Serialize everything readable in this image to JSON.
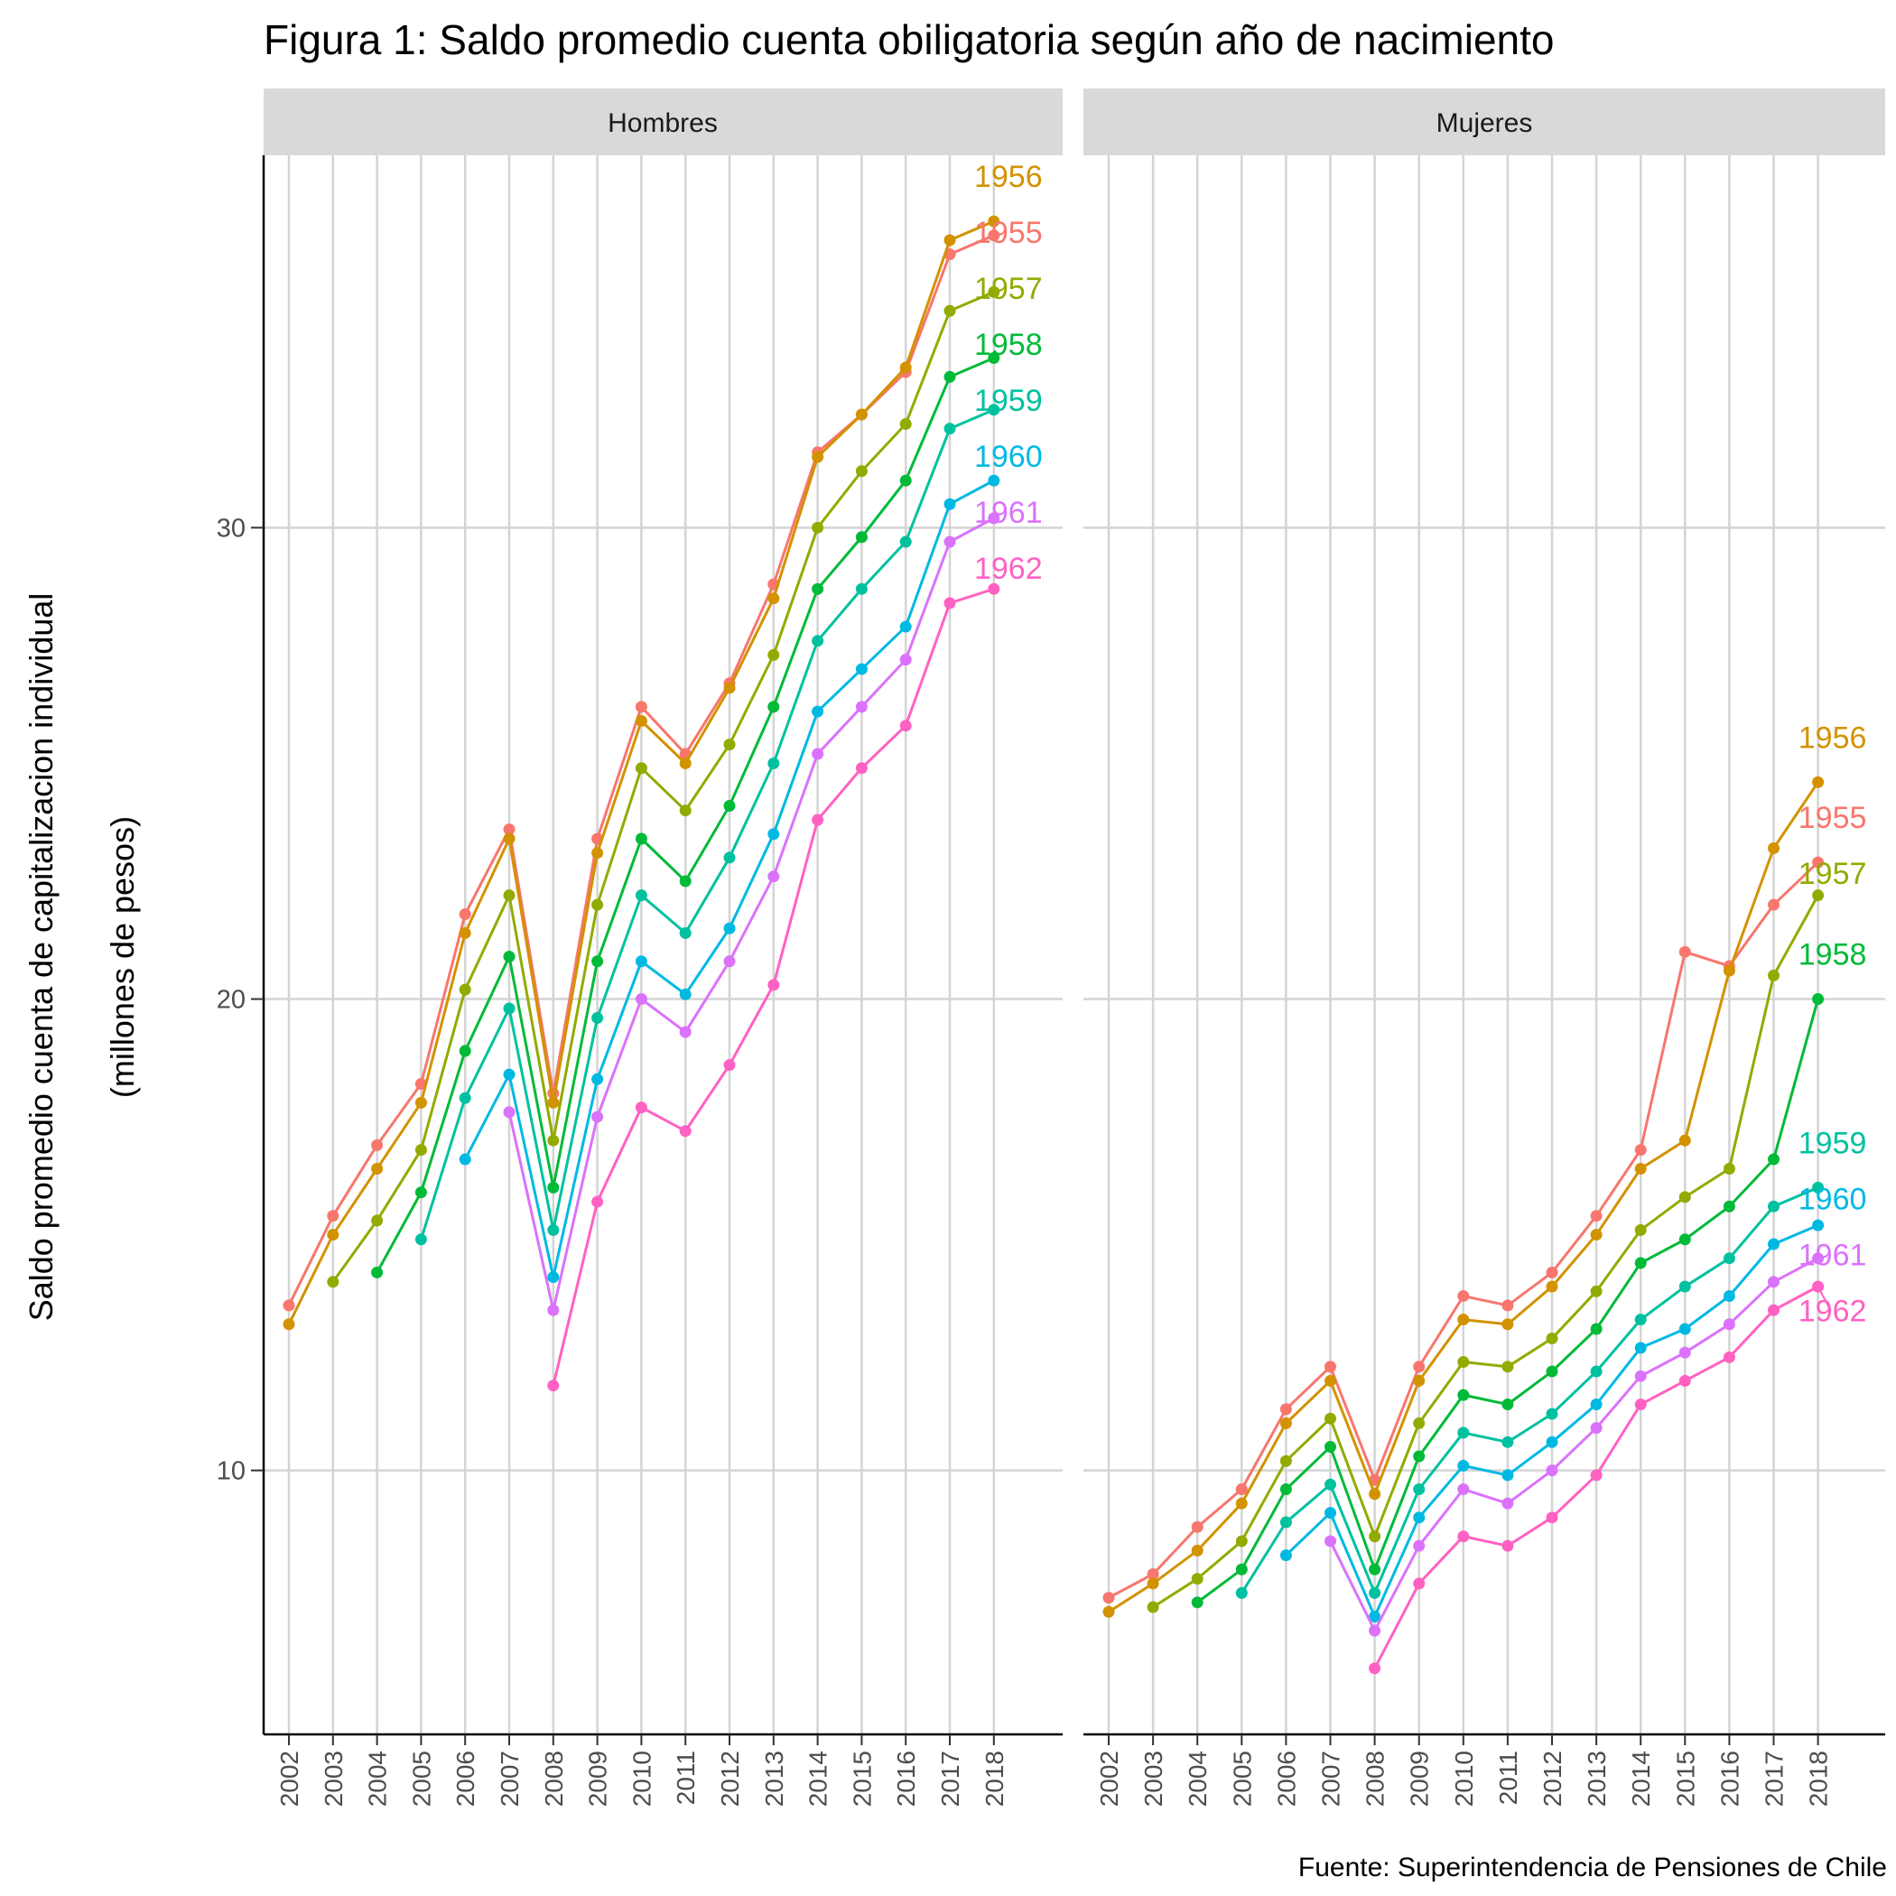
{
  "chart_data": {
    "type": "line",
    "title": "Figura 1: Saldo promedio cuenta obiligatoria según año de nacimiento",
    "ylabel_line1": "Saldo promedio cuenta de capitalizacion individual",
    "ylabel_line2": "(millones de pesos)",
    "caption": "Fuente: Superintendencia de Pensiones de Chile",
    "ylim": [
      4.4,
      37.9
    ],
    "yticks": [
      10,
      20,
      30
    ],
    "x": [
      "2002",
      "2003",
      "2004",
      "2005",
      "2006",
      "2007",
      "2008",
      "2009",
      "2010",
      "2011",
      "2012",
      "2013",
      "2014",
      "2015",
      "2016",
      "2017",
      "2018"
    ],
    "grid": true,
    "legend": "direct-labels-right",
    "panels": [
      {
        "name": "Hombres",
        "series": [
          {
            "name": "1955",
            "color": "#F8766D",
            "values": [
              13.5,
              15.4,
              16.9,
              18.2,
              21.8,
              23.6,
              18.0,
              23.4,
              26.2,
              25.2,
              26.7,
              28.8,
              31.6,
              32.4,
              33.3,
              35.8,
              36.2
            ]
          },
          {
            "name": "1956",
            "color": "#D39200",
            "values": [
              13.1,
              15.0,
              16.4,
              17.8,
              21.4,
              23.4,
              17.8,
              23.1,
              25.9,
              25.0,
              26.6,
              28.5,
              31.5,
              32.4,
              33.4,
              36.1,
              36.5
            ]
          },
          {
            "name": "1957",
            "color": "#93AA00",
            "values": [
              null,
              14.0,
              15.3,
              16.8,
              20.2,
              22.2,
              17.0,
              22.0,
              24.9,
              24.0,
              25.4,
              27.3,
              30.0,
              31.2,
              32.2,
              34.6,
              35.0
            ]
          },
          {
            "name": "1958",
            "color": "#00BA38",
            "values": [
              null,
              null,
              14.2,
              15.9,
              18.9,
              20.9,
              16.0,
              20.8,
              23.4,
              22.5,
              24.1,
              26.2,
              28.7,
              29.8,
              31.0,
              33.2,
              33.6
            ]
          },
          {
            "name": "1959",
            "color": "#00C19F",
            "values": [
              null,
              null,
              null,
              14.9,
              17.9,
              19.8,
              15.1,
              19.6,
              22.2,
              21.4,
              23.0,
              25.0,
              27.6,
              28.7,
              29.7,
              32.1,
              32.5
            ]
          },
          {
            "name": "1960",
            "color": "#00B9E3",
            "values": [
              null,
              null,
              null,
              null,
              16.6,
              18.4,
              14.1,
              18.3,
              20.8,
              20.1,
              21.5,
              23.5,
              26.1,
              27.0,
              27.9,
              30.5,
              31.0
            ]
          },
          {
            "name": "1961",
            "color": "#DB72FB",
            "values": [
              null,
              null,
              null,
              null,
              null,
              17.6,
              13.4,
              17.5,
              20.0,
              19.3,
              20.8,
              22.6,
              25.2,
              26.2,
              27.2,
              29.7,
              30.2
            ]
          },
          {
            "name": "1962",
            "color": "#FF61C3",
            "values": [
              null,
              null,
              null,
              null,
              null,
              null,
              11.8,
              15.7,
              17.7,
              17.2,
              18.6,
              20.3,
              23.8,
              24.9,
              25.8,
              28.4,
              28.7
            ]
          }
        ]
      },
      {
        "name": "Mujeres",
        "series": [
          {
            "name": "1955",
            "color": "#F8766D",
            "values": [
              7.3,
              7.8,
              8.8,
              9.6,
              11.3,
              12.2,
              9.8,
              12.2,
              13.7,
              13.5,
              14.2,
              15.4,
              16.8,
              21.0,
              20.7,
              22.0,
              22.9
            ]
          },
          {
            "name": "1956",
            "color": "#D39200",
            "values": [
              7.0,
              7.6,
              8.3,
              9.3,
              11.0,
              11.9,
              9.5,
              11.9,
              13.2,
              13.1,
              13.9,
              15.0,
              16.4,
              17.0,
              20.6,
              23.2,
              24.6
            ]
          },
          {
            "name": "1957",
            "color": "#93AA00",
            "values": [
              null,
              7.1,
              7.7,
              8.5,
              10.2,
              11.1,
              8.6,
              11.0,
              12.3,
              12.2,
              12.8,
              13.8,
              15.1,
              15.8,
              16.4,
              20.5,
              22.2
            ]
          },
          {
            "name": "1958",
            "color": "#00BA38",
            "values": [
              null,
              null,
              7.2,
              7.9,
              9.6,
              10.5,
              7.9,
              10.3,
              11.6,
              11.4,
              12.1,
              13.0,
              14.4,
              14.9,
              15.6,
              16.6,
              20.0
            ]
          },
          {
            "name": "1959",
            "color": "#00C19F",
            "values": [
              null,
              null,
              null,
              7.4,
              8.9,
              9.7,
              7.4,
              9.6,
              10.8,
              10.6,
              11.2,
              12.1,
              13.2,
              13.9,
              14.5,
              15.6,
              16.0
            ]
          },
          {
            "name": "1960",
            "color": "#00B9E3",
            "values": [
              null,
              null,
              null,
              null,
              8.2,
              9.1,
              6.9,
              9.0,
              10.1,
              9.9,
              10.6,
              11.4,
              12.6,
              13.0,
              13.7,
              14.8,
              15.2
            ]
          },
          {
            "name": "1961",
            "color": "#DB72FB",
            "values": [
              null,
              null,
              null,
              null,
              null,
              8.5,
              6.6,
              8.4,
              9.6,
              9.3,
              10.0,
              10.9,
              12.0,
              12.5,
              13.1,
              14.0,
              14.5
            ]
          },
          {
            "name": "1962",
            "color": "#FF61C3",
            "values": [
              null,
              null,
              null,
              null,
              null,
              null,
              5.8,
              7.6,
              8.6,
              8.4,
              9.0,
              9.9,
              11.4,
              11.9,
              12.4,
              13.4,
              13.9
            ]
          }
        ]
      }
    ]
  }
}
